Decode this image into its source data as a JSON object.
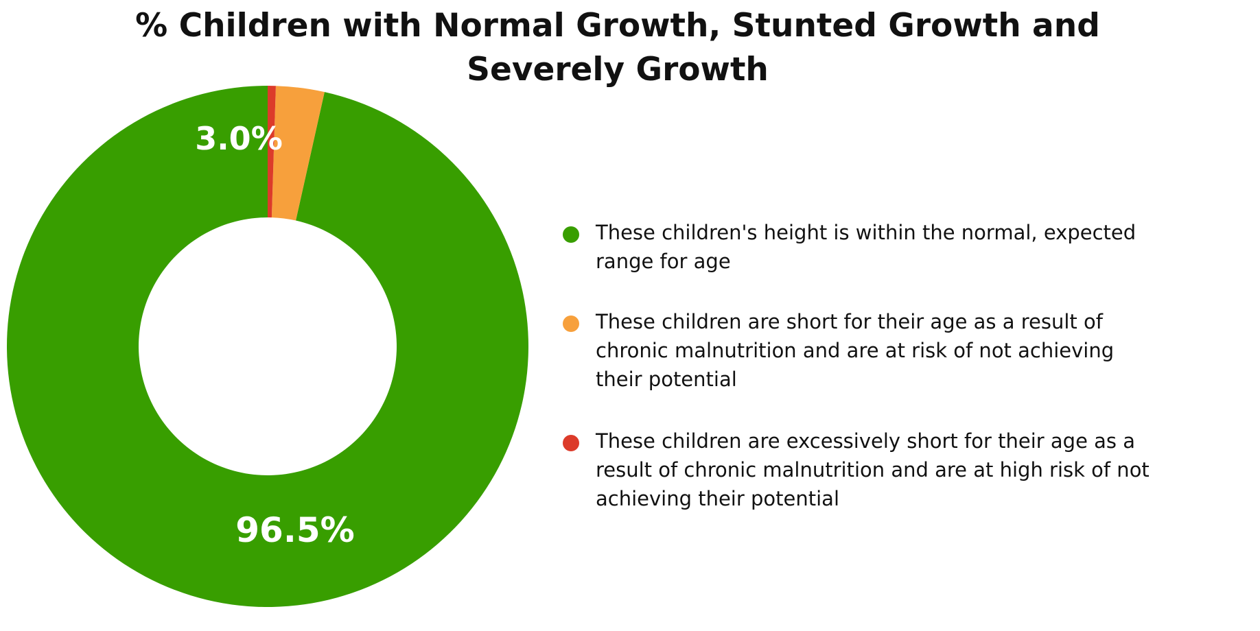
{
  "chart_data": {
    "type": "pie",
    "title": "% Children with Normal Growth, Stunted Growth and Severely Growth",
    "donut": true,
    "categories": [
      "These children's height is within the normal, expected range for age",
      "These children are short for their age as a result of chronic malnutrition and are at risk of not achieving their potential",
      "These children are excessively short for their age as a result of chronic malnutrition and are at high risk of not achieving their potential"
    ],
    "values": [
      96.5,
      3.0,
      0.5
    ],
    "colors": [
      "#389e00",
      "#f7a03c",
      "#dc3b2a"
    ],
    "data_labels": [
      "96.5%",
      "3.0%",
      ""
    ],
    "legend_position": "right"
  }
}
